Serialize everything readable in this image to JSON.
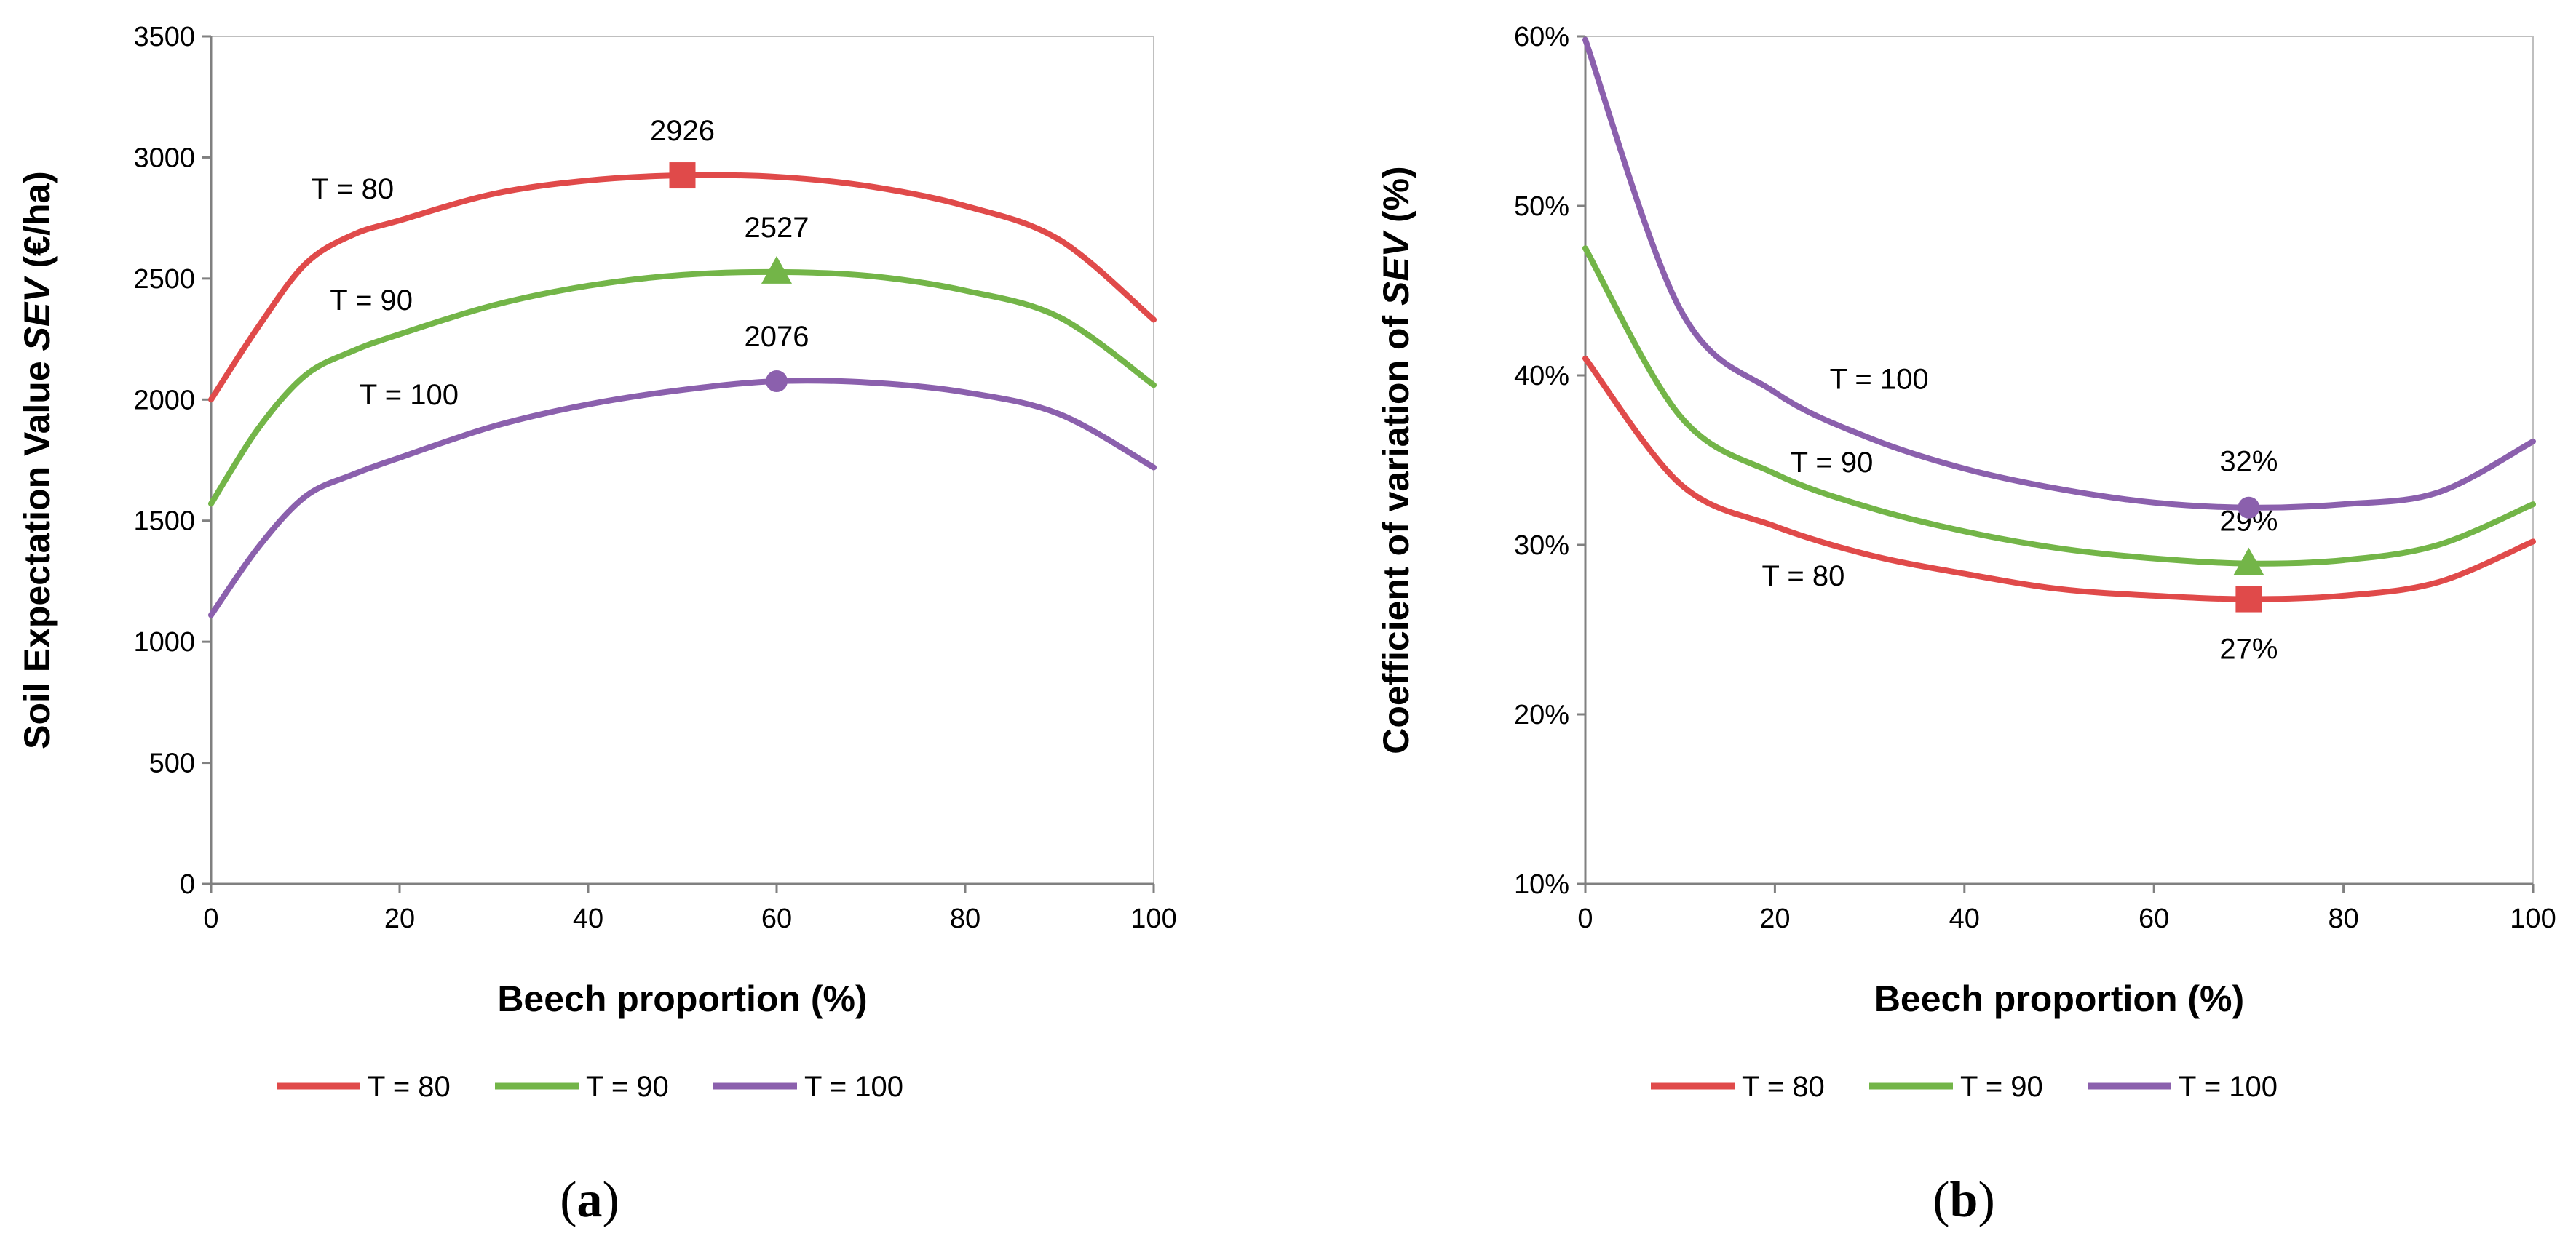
{
  "colors": {
    "t80": "#e04a4a",
    "t90": "#73b548",
    "t100": "#8b60ad",
    "axis": "#808080"
  },
  "chart_data": [
    {
      "type": "line",
      "panel_label_prefix": "(",
      "panel_label": "a",
      "panel_label_suffix": ")",
      "xlabel": "Beech proportion  (%)",
      "ylabel_prefix": "Soil Expectation  Value ",
      "ylabel_italic": "SEV",
      "ylabel_suffix": " (€/ha)",
      "xlim": [
        0,
        100
      ],
      "ylim": [
        0,
        3500
      ],
      "xticks": [
        0,
        20,
        40,
        60,
        80,
        100
      ],
      "xtick_labels": [
        "0",
        "20",
        "40",
        "60",
        "80",
        "100"
      ],
      "yticks": [
        0,
        500,
        1000,
        1500,
        2000,
        2500,
        3000,
        3500
      ],
      "ytick_labels": [
        "0",
        "500",
        "1000",
        "1500",
        "2000",
        "2500",
        "3000",
        "3500"
      ],
      "grid": false,
      "legend": "bottom",
      "series": [
        {
          "name": "T = 80",
          "color_key": "t80",
          "marker": "square",
          "x": [
            0,
            5,
            10,
            15,
            20,
            30,
            40,
            50,
            60,
            70,
            80,
            90,
            100
          ],
          "y": [
            2000,
            2300,
            2560,
            2680,
            2740,
            2850,
            2905,
            2926,
            2920,
            2880,
            2800,
            2660,
            2330
          ],
          "highlight": {
            "x": 50,
            "y": 2926,
            "label": "2926"
          }
        },
        {
          "name": "T = 90",
          "color_key": "t90",
          "marker": "triangle",
          "x": [
            0,
            5,
            10,
            15,
            20,
            30,
            40,
            50,
            60,
            70,
            80,
            90,
            100
          ],
          "y": [
            1570,
            1880,
            2100,
            2200,
            2270,
            2390,
            2470,
            2515,
            2527,
            2510,
            2450,
            2340,
            2060
          ],
          "highlight": {
            "x": 60,
            "y": 2527,
            "label": "2527"
          }
        },
        {
          "name": "T = 100",
          "color_key": "t100",
          "marker": "circle",
          "x": [
            0,
            5,
            10,
            15,
            20,
            30,
            40,
            50,
            60,
            70,
            80,
            90,
            100
          ],
          "y": [
            1110,
            1390,
            1600,
            1690,
            1760,
            1890,
            1980,
            2040,
            2076,
            2070,
            2030,
            1940,
            1720
          ],
          "highlight": {
            "x": 60,
            "y": 2076,
            "label": "2076"
          }
        }
      ],
      "annotations": [
        {
          "text": "T = 80",
          "x": 15,
          "y": 2830
        },
        {
          "text": "T = 90",
          "x": 17,
          "y": 2370
        },
        {
          "text": "T = 100",
          "x": 21,
          "y": 1980
        }
      ]
    },
    {
      "type": "line",
      "panel_label_prefix": "(",
      "panel_label": "b",
      "panel_label_suffix": ")",
      "xlabel": "Beech proportion  (%)",
      "ylabel_prefix": "Coefficient  of variation of ",
      "ylabel_italic": "SEV",
      "ylabel_suffix": " (%)",
      "xlim": [
        0,
        100
      ],
      "ylim": [
        10,
        60
      ],
      "xticks": [
        0,
        20,
        40,
        60,
        80,
        100
      ],
      "xtick_labels": [
        "0",
        "20",
        "40",
        "60",
        "80",
        "100"
      ],
      "yticks": [
        10,
        20,
        30,
        40,
        50,
        60
      ],
      "ytick_labels": [
        "10%",
        "20%",
        "30%",
        "40%",
        "50%",
        "60%"
      ],
      "grid": false,
      "legend": "bottom",
      "series": [
        {
          "name": "T = 80",
          "color_key": "t80",
          "marker": "square",
          "x": [
            0,
            10,
            20,
            30,
            40,
            50,
            60,
            70,
            80,
            90,
            100
          ],
          "y": [
            41,
            33.6,
            31.1,
            29.4,
            28.3,
            27.4,
            27.0,
            26.8,
            27.0,
            27.8,
            30.2
          ],
          "highlight": {
            "x": 70,
            "y": 26.8,
            "label": "27%"
          }
        },
        {
          "name": "T = 90",
          "color_key": "t90",
          "marker": "triangle",
          "x": [
            0,
            10,
            20,
            30,
            40,
            50,
            60,
            70,
            80,
            90,
            100
          ],
          "y": [
            47.5,
            37.6,
            34.2,
            32.2,
            30.8,
            29.8,
            29.2,
            28.9,
            29.1,
            30.0,
            32.4
          ],
          "highlight": {
            "x": 70,
            "y": 28.9,
            "label": "29%"
          }
        },
        {
          "name": "T = 100",
          "color_key": "t100",
          "marker": "circle",
          "x": [
            0,
            10,
            20,
            30,
            40,
            50,
            60,
            70,
            80,
            90,
            100
          ],
          "y": [
            59.8,
            43.9,
            39.0,
            36.3,
            34.5,
            33.3,
            32.5,
            32.2,
            32.4,
            33.1,
            36.1
          ],
          "highlight": {
            "x": 70,
            "y": 32.2,
            "label": "32%"
          }
        }
      ],
      "annotations": [
        {
          "text": "T = 100",
          "x": 31,
          "y": 39.2
        },
        {
          "text": "T = 90",
          "x": 26,
          "y": 34.3
        },
        {
          "text": "T = 80",
          "x": 23,
          "y": 27.6
        }
      ]
    }
  ]
}
